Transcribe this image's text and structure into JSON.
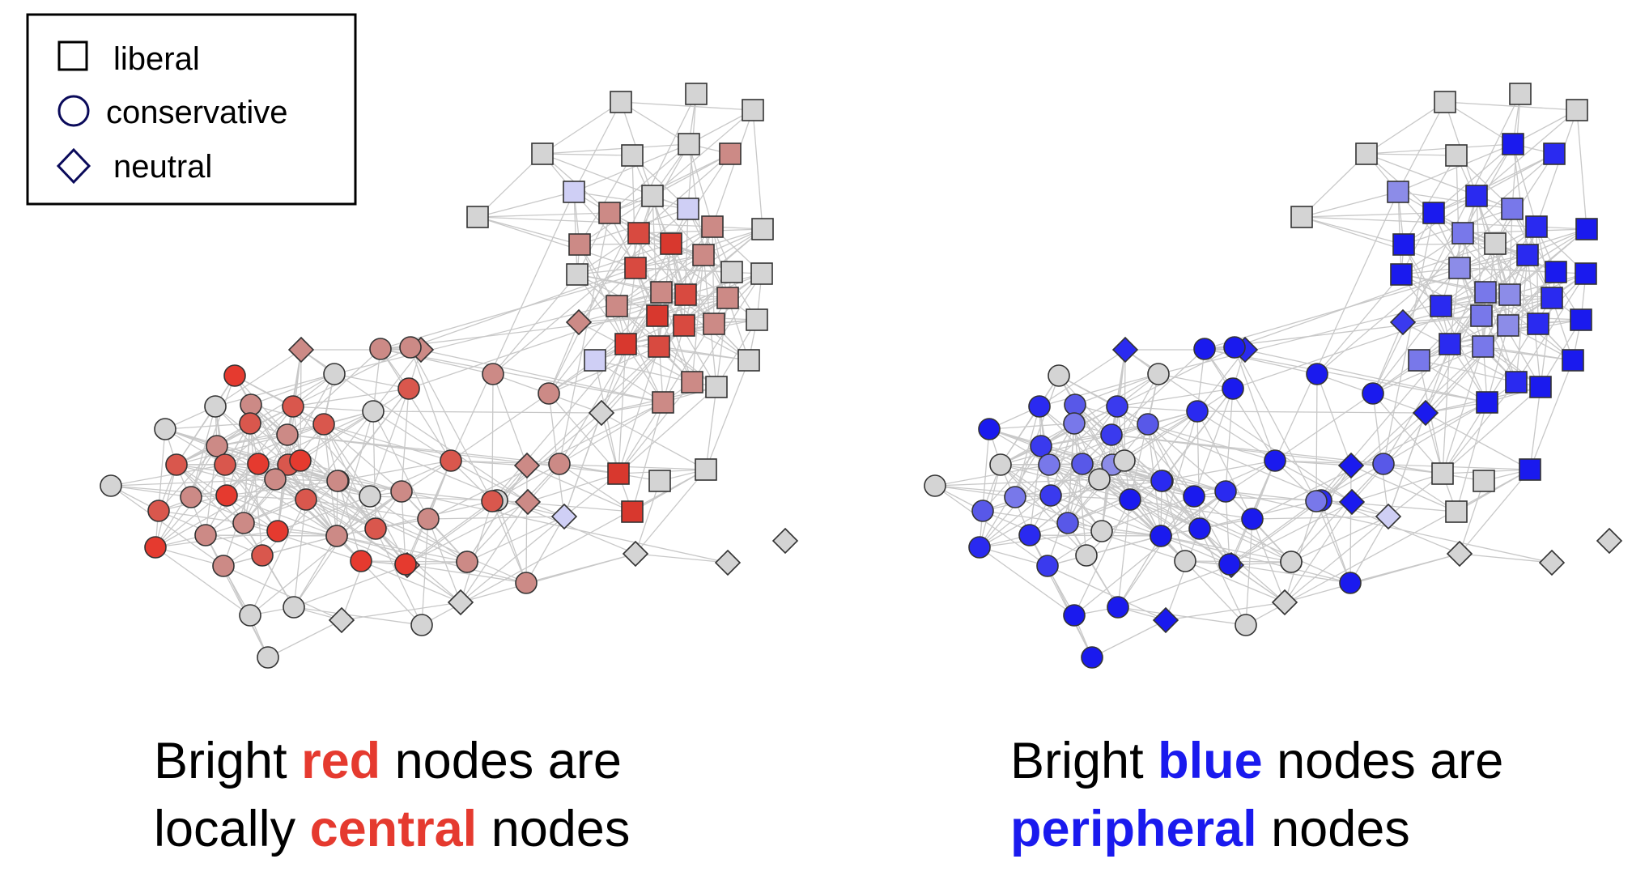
{
  "legend": {
    "items": [
      {
        "label": "liberal",
        "shape": "square"
      },
      {
        "label": "conservative",
        "shape": "circle"
      },
      {
        "label": "neutral",
        "shape": "diamond"
      }
    ]
  },
  "colors": {
    "red_accent": "#e53a2f",
    "blue_accent": "#1a1aee",
    "node_stroke": "#333333",
    "edge": "#c8c8c8",
    "neutral_gray": "#d4d4d4"
  },
  "left_caption": {
    "line1_pre": "Bright ",
    "line1_highlight": "red",
    "line1_post": " nodes are",
    "line2_pre": "locally ",
    "line2_highlight": "central",
    "line2_post": " nodes"
  },
  "right_caption": {
    "line1_pre": "Bright ",
    "line1_highlight": "blue",
    "line1_post": " nodes are",
    "line2_highlight": "peripheral",
    "line2_post": " nodes"
  }
}
